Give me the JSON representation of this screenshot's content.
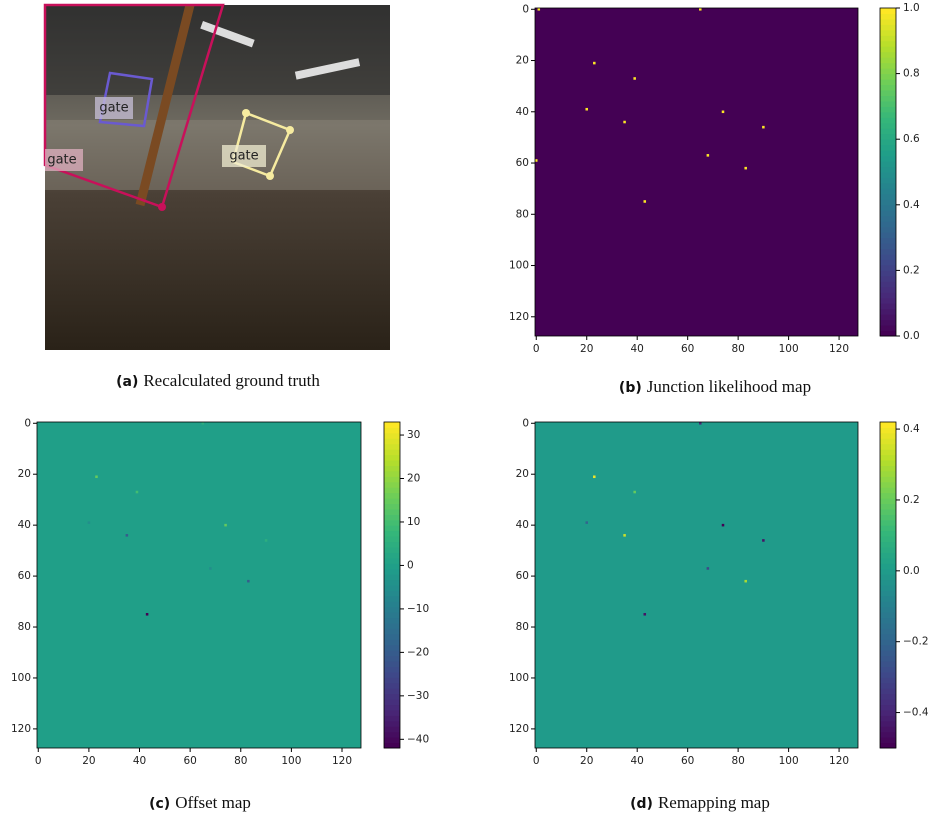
{
  "panels": [
    {
      "label": "(a)",
      "caption": "Recalculated ground truth",
      "annotations": [
        "gate",
        "gate",
        "gate"
      ]
    },
    {
      "label": "(b)",
      "caption": "Junction likelihood map",
      "type": "heatmap",
      "colormap": "viridis",
      "xlim": [
        -0.5,
        127.5
      ],
      "ylim": [
        127.5,
        -0.5
      ],
      "xticks": [
        0,
        20,
        40,
        60,
        80,
        100,
        120
      ],
      "yticks": [
        0,
        20,
        40,
        60,
        80,
        100,
        120
      ],
      "background": 0,
      "colorbar": {
        "lim": [
          0,
          1
        ],
        "ticks": [
          {
            "value": 0,
            "label": "0.0"
          },
          0.2,
          0.4,
          0.6,
          0.8,
          {
            "value": 1,
            "label": "1.0"
          }
        ]
      },
      "points": {
        "x": [
          23,
          39,
          20,
          35,
          74,
          90,
          0,
          68,
          83,
          43,
          65,
          1
        ],
        "y": [
          21,
          27,
          39,
          44,
          40,
          46,
          59,
          57,
          62,
          75,
          0,
          0
        ],
        "values": [
          1,
          1,
          1,
          1,
          1,
          1,
          1,
          1,
          1,
          1,
          1,
          1
        ]
      }
    },
    {
      "label": "(c)",
      "caption": "Offset map",
      "type": "heatmap",
      "colormap": "viridis",
      "xlim": [
        -0.5,
        127.5
      ],
      "ylim": [
        127.5,
        -0.5
      ],
      "xticks": [
        0,
        20,
        40,
        60,
        80,
        100,
        120
      ],
      "yticks": [
        0,
        20,
        40,
        60,
        80,
        100,
        120
      ],
      "background": 0,
      "colorbar": {
        "lim": [
          -42,
          33
        ],
        "ticks": [
          30,
          20,
          10,
          0,
          {
            "value": -10,
            "label": "−10"
          },
          {
            "value": -20,
            "label": "−20"
          },
          {
            "value": -30,
            "label": "−30"
          },
          {
            "value": -40,
            "label": "−40"
          }
        ]
      },
      "points": {
        "x": [
          23,
          39,
          20,
          35,
          74,
          90,
          68,
          83,
          43,
          65
        ],
        "y": [
          21,
          27,
          39,
          44,
          40,
          46,
          57,
          62,
          75,
          0
        ],
        "values": [
          15,
          10,
          -5,
          -20,
          15,
          5,
          -5,
          -20,
          -42,
          5
        ]
      }
    },
    {
      "label": "(d)",
      "caption": "Remapping map",
      "type": "heatmap",
      "colormap": "viridis",
      "xlim": [
        -0.5,
        127.5
      ],
      "ylim": [
        127.5,
        -0.5
      ],
      "xticks": [
        0,
        20,
        40,
        60,
        80,
        100,
        120
      ],
      "yticks": [
        0,
        20,
        40,
        60,
        80,
        100,
        120
      ],
      "background": 0,
      "colorbar": {
        "lim": [
          -0.5,
          0.42
        ],
        "ticks": [
          0.4,
          0.2,
          {
            "value": 0,
            "label": "0.0"
          },
          {
            "value": -0.2,
            "label": "−0.2"
          },
          {
            "value": -0.4,
            "label": "−0.4"
          }
        ]
      },
      "points": {
        "x": [
          23,
          39,
          20,
          35,
          74,
          90,
          68,
          83,
          43,
          65
        ],
        "y": [
          21,
          27,
          39,
          44,
          40,
          46,
          57,
          62,
          75,
          0
        ],
        "values": [
          0.4,
          0.2,
          -0.2,
          0.35,
          -0.5,
          -0.45,
          -0.3,
          0.3,
          -0.45,
          -0.4
        ]
      }
    }
  ]
}
